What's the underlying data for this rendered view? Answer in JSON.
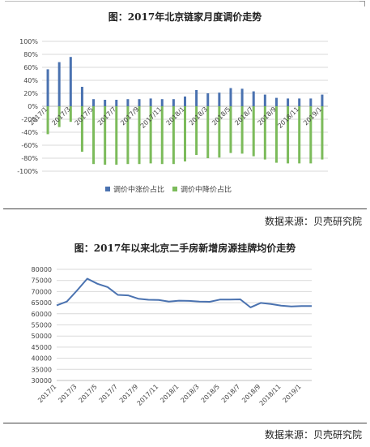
{
  "chart1": {
    "title": "图：2017年北京链家月度调价走势",
    "source": "数据来源：贝壳研究院",
    "legend": {
      "up": "调价中涨价占比",
      "down": "调价中降价占比"
    },
    "colors": {
      "up": "#4a72b0",
      "down": "#7cbb5b",
      "grid": "#d9d9d9",
      "axis": "#bfbfbf"
    }
  },
  "chart2": {
    "title": "图：2017年以来北京二手房新增房源挂牌均价走势",
    "source": "数据来源：贝壳研究院",
    "colors": {
      "line": "#4a72b0",
      "grid": "#d9d9d9",
      "axis": "#bfbfbf"
    }
  },
  "chart_data": [
    {
      "type": "bar",
      "ylim": [
        -100,
        100
      ],
      "yticks": [
        100,
        80,
        60,
        40,
        20,
        0,
        -20,
        -40,
        -60,
        -80,
        -100
      ],
      "ytick_labels": [
        "100%",
        "80%",
        "60%",
        "40%",
        "20%",
        "0%",
        "-20%",
        "-40%",
        "-60%",
        "-80%",
        "-100%"
      ],
      "categories": [
        "2017/1",
        "2017/2",
        "2017/3",
        "2017/4",
        "2017/5",
        "2017/6",
        "2017/7",
        "2017/8",
        "2017/9",
        "2017/10",
        "2017/11",
        "2017/12",
        "2018/1",
        "2018/2",
        "2018/3",
        "2018/4",
        "2018/5",
        "2018/6",
        "2018/7",
        "2018/8",
        "2018/9",
        "2018/10",
        "2018/11",
        "2018/12",
        "2019/1"
      ],
      "tick_labels": [
        "2017/1",
        "",
        "2017/3",
        "",
        "2017/5",
        "",
        "2017/7",
        "",
        "2017/9",
        "",
        "2017/11",
        "",
        "2018/1",
        "",
        "2018/3",
        "",
        "2018/5",
        "",
        "2018/7",
        "",
        "2018/9",
        "",
        "2018/11",
        "",
        "2019/1"
      ],
      "series": [
        {
          "name": "调价中涨价占比",
          "values": [
            57,
            68,
            76,
            30,
            11,
            10,
            10,
            11,
            11,
            12,
            11,
            11,
            15,
            25,
            20,
            21,
            28,
            27,
            23,
            18,
            13,
            12,
            12,
            12,
            18
          ]
        },
        {
          "name": "调价中降价占比",
          "values": [
            -43,
            -32,
            -24,
            -70,
            -89,
            -90,
            -90,
            -89,
            -89,
            -88,
            -89,
            -89,
            -85,
            -75,
            -80,
            -79,
            -72,
            -73,
            -77,
            -82,
            -87,
            -88,
            -88,
            -88,
            -82
          ]
        }
      ],
      "grid": true,
      "legend": "bottom"
    },
    {
      "type": "line",
      "ylim": [
        30000,
        80000
      ],
      "yticks": [
        80000,
        75000,
        70000,
        65000,
        60000,
        55000,
        50000,
        45000,
        40000,
        35000,
        30000
      ],
      "ytick_labels": [
        "80000",
        "75000",
        "70000",
        "65000",
        "60000",
        "55000",
        "50000",
        "45000",
        "40000",
        "35000",
        "30000"
      ],
      "x": [
        "2017/1",
        "2017/2",
        "2017/3",
        "2017/4",
        "2017/5",
        "2017/6",
        "2017/7",
        "2017/8",
        "2017/9",
        "2017/10",
        "2017/11",
        "2017/12",
        "2018/1",
        "2018/2",
        "2018/3",
        "2018/4",
        "2018/5",
        "2018/6",
        "2018/7",
        "2018/8",
        "2018/9",
        "2018/10",
        "2018/11",
        "2018/12",
        "2019/1",
        "2019/2"
      ],
      "tick_labels": [
        "2017/1",
        "2017/3",
        "2017/5",
        "2017/7",
        "2017/9",
        "2017/11",
        "2018/1",
        "2018/3",
        "2018/5",
        "2018/7",
        "2018/9",
        "2018/11",
        "2019/1"
      ],
      "series": [
        {
          "values": [
            63800,
            65500,
            70500,
            75800,
            73500,
            72000,
            68500,
            68300,
            66800,
            66300,
            66200,
            65500,
            65900,
            65800,
            65500,
            65400,
            66400,
            66400,
            66500,
            62900,
            64900,
            64400,
            63700,
            63300,
            63500,
            63500
          ]
        }
      ],
      "grid": true
    }
  ]
}
